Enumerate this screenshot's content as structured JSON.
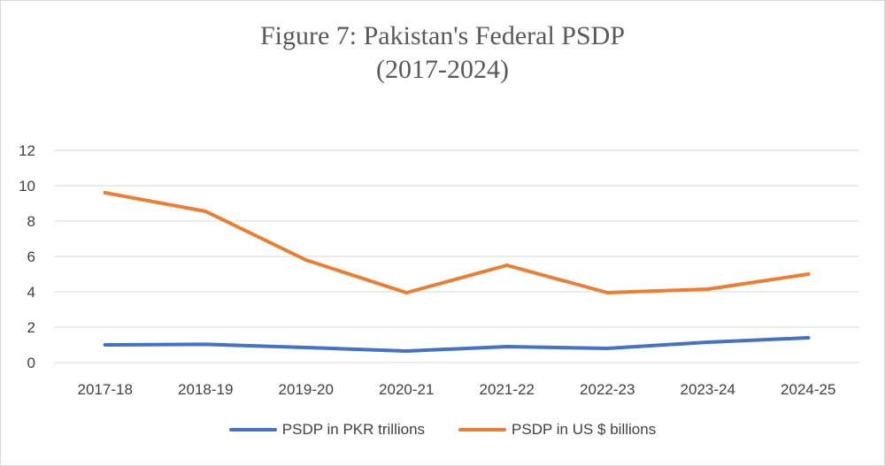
{
  "chart_data": {
    "type": "line",
    "title_lines": [
      "Figure 7: Pakistan's Federal PSDP",
      "(2017-2024)"
    ],
    "categories": [
      "2017-18",
      "2018-19",
      "2019-20",
      "2020-21",
      "2021-22",
      "2022-23",
      "2023-24",
      "2024-25"
    ],
    "ylim": [
      0,
      12
    ],
    "yticks": [
      "0",
      "2",
      "4",
      "6",
      "8",
      "10",
      "12"
    ],
    "grid": true,
    "legend_position": "bottom",
    "series": [
      {
        "name": "PSDP in PKR trillions",
        "color": "#4472c4",
        "values": [
          1.0,
          1.03,
          0.85,
          0.65,
          0.9,
          0.8,
          1.15,
          1.4
        ]
      },
      {
        "name": "PSDP in US $ billions",
        "color": "#ed7d31",
        "values": [
          9.6,
          8.55,
          5.8,
          3.95,
          5.5,
          3.95,
          4.15,
          5.0
        ]
      }
    ]
  }
}
